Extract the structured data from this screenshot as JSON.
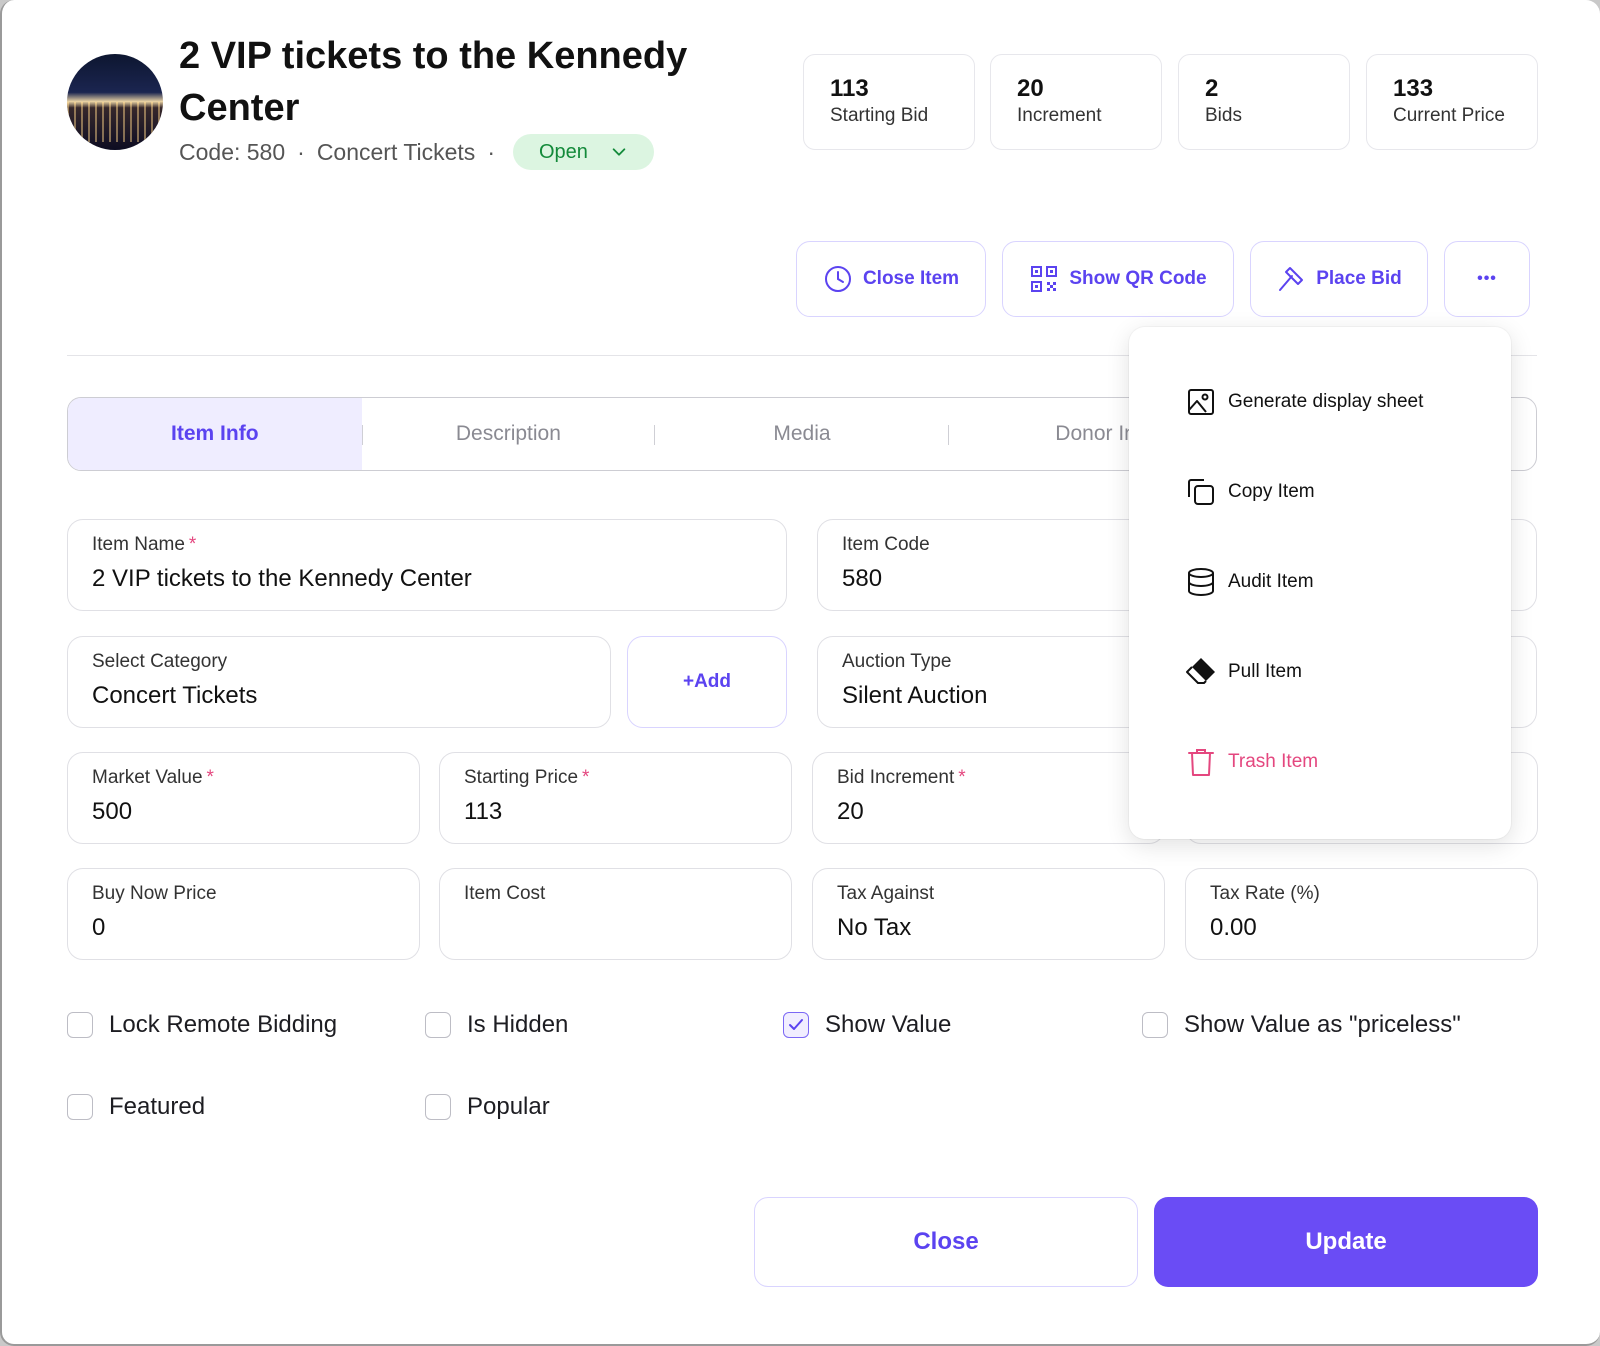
{
  "header": {
    "title": "2 VIP tickets to the Kennedy Center",
    "code_text": "Code: 580",
    "separator": "·",
    "category": "Concert Tickets",
    "status": "Open"
  },
  "stats": [
    {
      "value": "113",
      "label": "Starting Bid"
    },
    {
      "value": "20",
      "label": "Increment"
    },
    {
      "value": "2",
      "label": "Bids"
    },
    {
      "value": "133",
      "label": "Current Price"
    }
  ],
  "actions": {
    "close_item": "Close Item",
    "show_qr": "Show QR Code",
    "place_bid": "Place Bid",
    "more": "•••"
  },
  "tabs": [
    "Item Info",
    "Description",
    "Media",
    "Donor In"
  ],
  "fields": {
    "item_name": {
      "label": "Item Name",
      "required": "*",
      "value": "2 VIP tickets to the Kennedy Center"
    },
    "item_code": {
      "label": "Item Code",
      "value": "580"
    },
    "category": {
      "label": "Select Category",
      "value": "Concert Tickets"
    },
    "add_label": "+Add",
    "auction_type": {
      "label": "Auction Type",
      "value": "Silent Auction"
    },
    "market_value": {
      "label": "Market Value",
      "required": "*",
      "value": "500"
    },
    "starting_price": {
      "label": "Starting Price",
      "required": "*",
      "value": "113"
    },
    "bid_increment": {
      "label": "Bid Increment",
      "required": "*",
      "value": "20"
    },
    "buy_now": {
      "label": "Buy Now Price",
      "value": "0"
    },
    "item_cost": {
      "label": "Item Cost",
      "value": ""
    },
    "tax_against": {
      "label": "Tax Against",
      "value": "No Tax"
    },
    "tax_rate": {
      "label": "Tax Rate (%)",
      "value": "0.00"
    }
  },
  "checkboxes": {
    "lock_remote": {
      "label": "Lock Remote Bidding",
      "checked": false
    },
    "is_hidden": {
      "label": "Is Hidden",
      "checked": false
    },
    "show_value": {
      "label": "Show Value",
      "checked": true
    },
    "show_priceless": {
      "label": "Show Value as \"priceless\"",
      "checked": false
    },
    "featured": {
      "label": "Featured",
      "checked": false
    },
    "popular": {
      "label": "Popular",
      "checked": false
    }
  },
  "footer": {
    "close": "Close",
    "update": "Update"
  },
  "menu": {
    "generate_sheet": "Generate display sheet",
    "copy_item": "Copy Item",
    "audit_item": "Audit Item",
    "pull_item": "Pull Item",
    "trash_item": "Trash Item"
  },
  "colors": {
    "accent": "#6a4cf5",
    "status_bg": "#dcf5e1",
    "status_text": "#138a3a",
    "danger": "#e4477f"
  }
}
